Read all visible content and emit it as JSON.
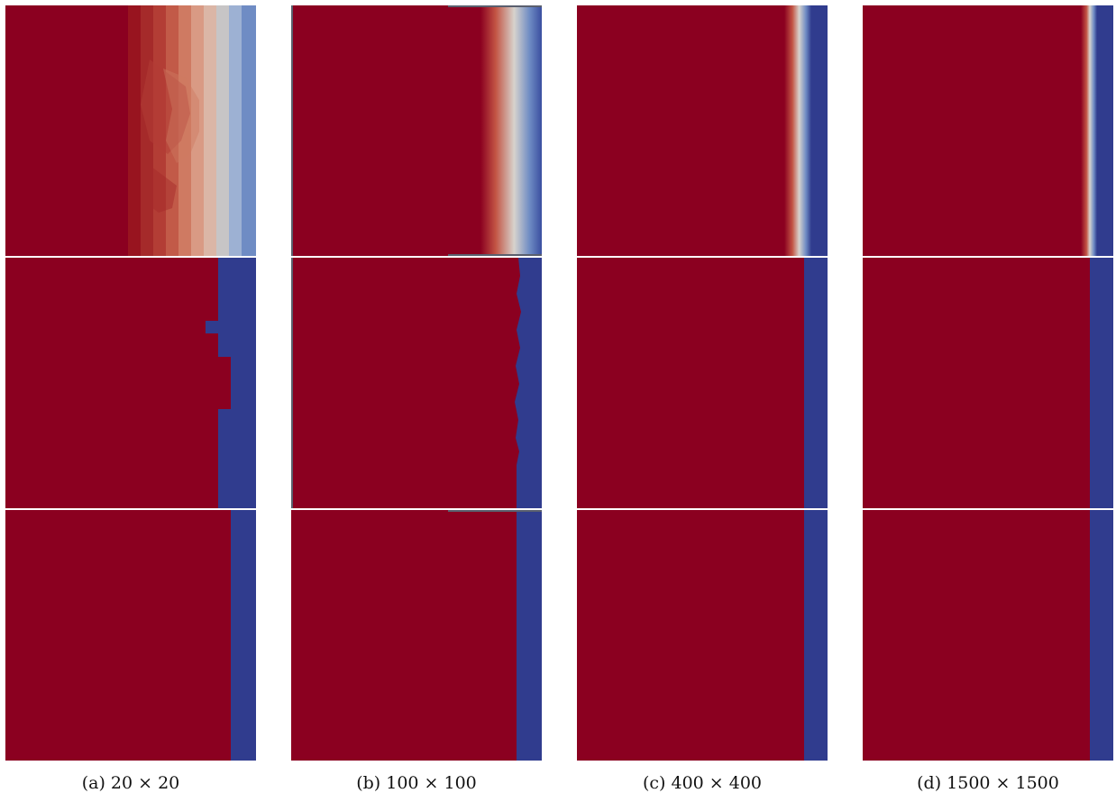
{
  "colors": {
    "phase_red": "#8b0020",
    "phase_blue": "#303c8e",
    "interface_light": "#d7d3cd",
    "interface_midblue": "#6f8cc4"
  },
  "captions": [
    "(a) 20 × 20",
    "(b) 100 × 100",
    "(c) 400 × 400",
    "(d) 1500 × 1500"
  ]
}
